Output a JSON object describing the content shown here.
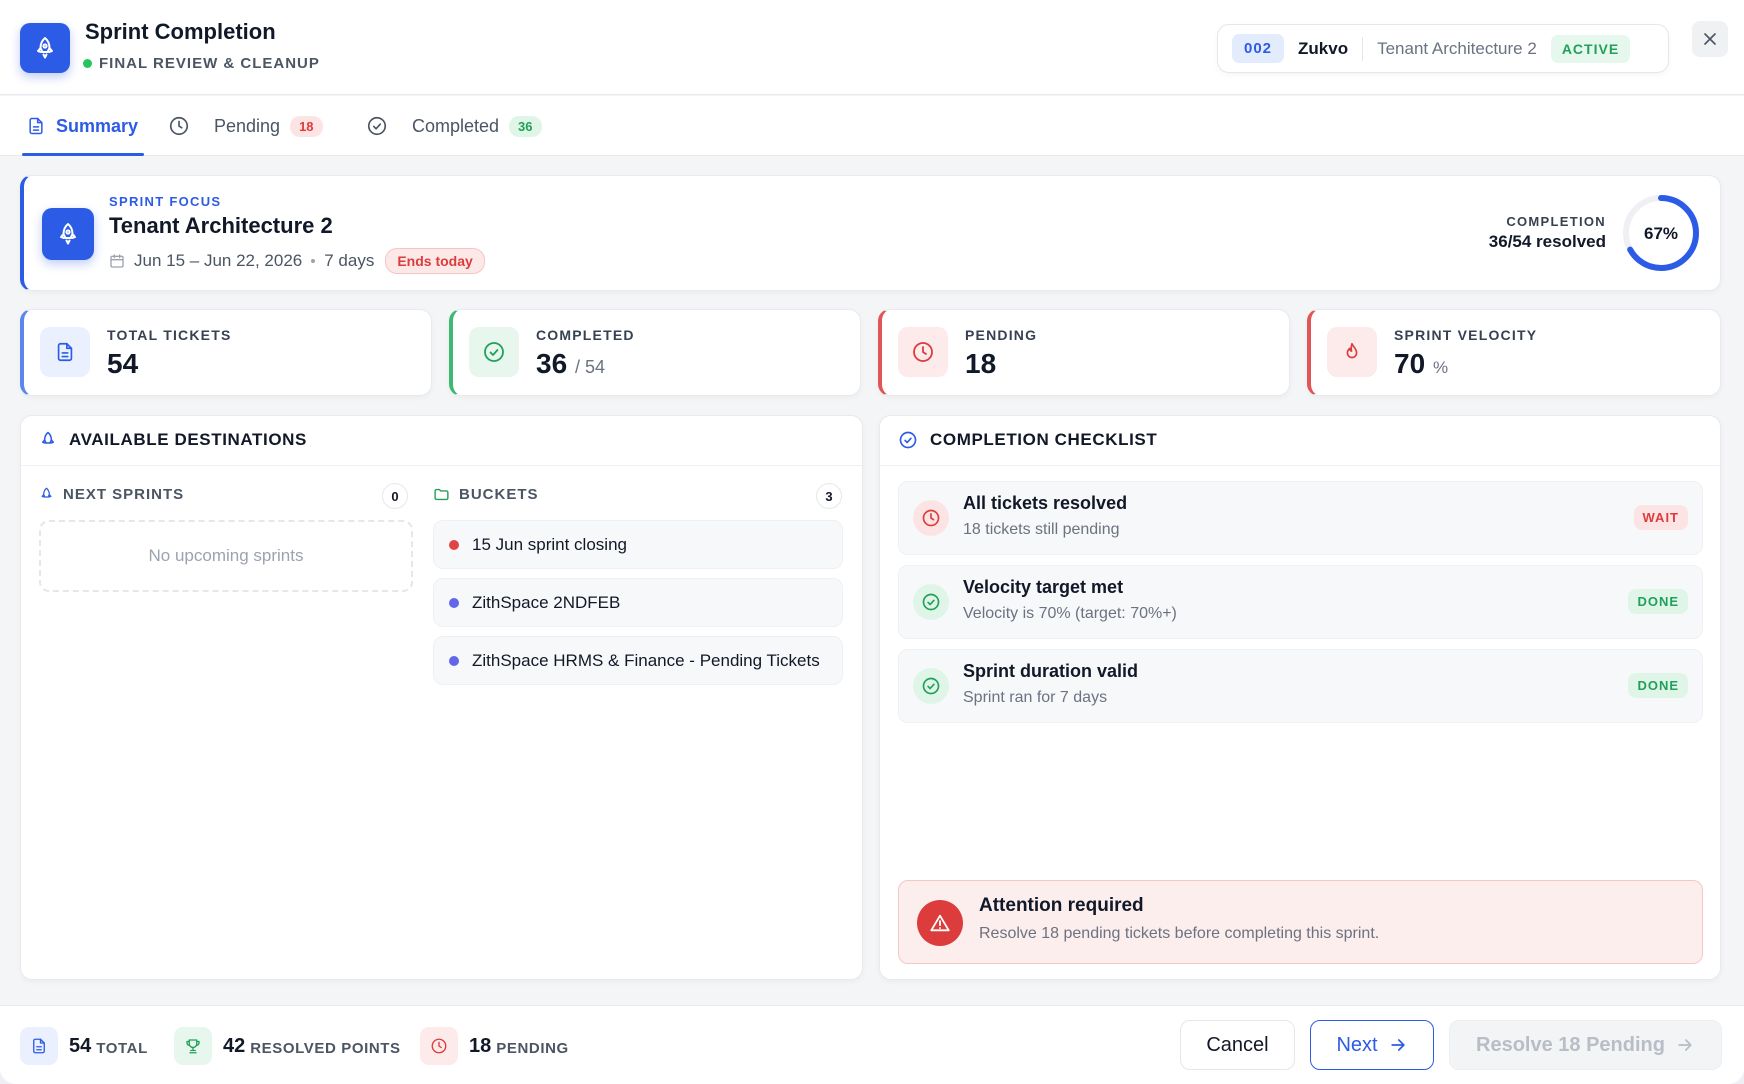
{
  "header": {
    "title": "Sprint Completion",
    "subtitle": "FINAL REVIEW & CLEANUP",
    "context": {
      "number": "002",
      "org": "Zukvo",
      "project": "Tenant Architecture 2",
      "status": "ACTIVE"
    }
  },
  "tabs": [
    {
      "label": "Summary",
      "badge": ""
    },
    {
      "label": "Pending",
      "badge": "18"
    },
    {
      "label": "Completed",
      "badge": "36"
    }
  ],
  "focus": {
    "label": "SPRINT FOCUS",
    "title": "Tenant Architecture 2",
    "dates": "Jun 15 – Jun 22, 2026",
    "duration": "7 days",
    "ends_badge": "Ends today",
    "completion_label": "COMPLETION",
    "completion_value": "36/54 resolved",
    "percent_text": "67%",
    "percent": 67
  },
  "stats": [
    {
      "label": "TOTAL TICKETS",
      "value": "54",
      "suffix": ""
    },
    {
      "label": "COMPLETED",
      "value": "36",
      "suffix": "/ 54"
    },
    {
      "label": "PENDING",
      "value": "18",
      "suffix": ""
    },
    {
      "label": "SPRINT VELOCITY",
      "value": "70",
      "suffix": "%"
    }
  ],
  "destinations": {
    "title": "AVAILABLE DESTINATIONS",
    "next_sprints": {
      "label": "NEXT SPRINTS",
      "count": "0",
      "empty": "No upcoming sprints"
    },
    "buckets": {
      "label": "BUCKETS",
      "count": "3",
      "items": [
        {
          "name": "15 Jun sprint closing",
          "color": "#e04444"
        },
        {
          "name": "ZithSpace 2NDFEB",
          "color": "#6366e8"
        },
        {
          "name": "ZithSpace HRMS & Finance - Pending Tickets",
          "color": "#6366e8"
        }
      ]
    }
  },
  "checklist": {
    "title": "COMPLETION CHECKLIST",
    "items": [
      {
        "title": "All tickets resolved",
        "subtitle": "18 tickets still pending",
        "status": "WAIT"
      },
      {
        "title": "Velocity target met",
        "subtitle": "Velocity is 70% (target: 70%+)",
        "status": "DONE"
      },
      {
        "title": "Sprint duration valid",
        "subtitle": "Sprint ran for 7 days",
        "status": "DONE"
      }
    ],
    "alert": {
      "title": "Attention required",
      "message": "Resolve 18 pending tickets before completing this sprint."
    }
  },
  "footer": {
    "stats": [
      {
        "value": "54",
        "label": "TOTAL"
      },
      {
        "value": "42",
        "label": "RESOLVED POINTS"
      },
      {
        "value": "18",
        "label": "PENDING"
      }
    ],
    "cancel": "Cancel",
    "next": "Next",
    "resolve": "Resolve 18 Pending"
  },
  "colors": {
    "accent": "#2c5be6",
    "success": "#22a05a",
    "danger": "#dc3c3c"
  },
  "icons": [
    "rocket-icon",
    "close-icon",
    "document-icon",
    "clock-icon",
    "check-circle-icon",
    "calendar-icon",
    "flame-icon",
    "folder-icon",
    "trophy-icon",
    "warning-icon",
    "arrow-right-icon"
  ]
}
